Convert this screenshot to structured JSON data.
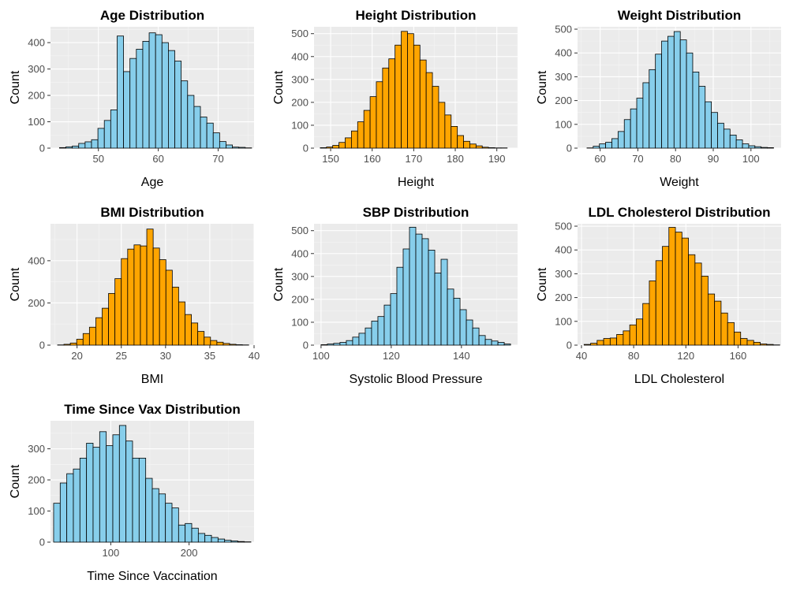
{
  "colors": {
    "blue": "#87CEEB",
    "orange": "#FFA500",
    "panel": "#EBEBEB",
    "grid": "#FFFFFF"
  },
  "chart_data": [
    {
      "type": "bar",
      "title": "Age Distribution",
      "xlabel": "Age",
      "ylabel": "Count",
      "fill": "blue",
      "bins_start": 43.5,
      "bin_width": 1.07,
      "values": [
        2,
        5,
        8,
        18,
        24,
        32,
        75,
        105,
        145,
        425,
        290,
        340,
        375,
        405,
        437,
        430,
        400,
        370,
        330,
        255,
        200,
        158,
        118,
        95,
        58,
        25,
        12,
        4,
        3,
        1
      ],
      "xlim": [
        42,
        76
      ],
      "ylim": [
        0,
        460
      ],
      "xticks": [
        50,
        60,
        70
      ],
      "yticks": [
        0,
        100,
        200,
        300,
        400
      ]
    },
    {
      "type": "bar",
      "title": "Height Distribution",
      "xlabel": "Height",
      "ylabel": "Count",
      "fill": "orange",
      "bins_start": 147.5,
      "bin_width": 1.5,
      "values": [
        2,
        5,
        12,
        25,
        45,
        75,
        115,
        165,
        225,
        290,
        350,
        390,
        450,
        510,
        500,
        450,
        385,
        330,
        270,
        200,
        145,
        95,
        55,
        30,
        18,
        10,
        4,
        2,
        1,
        1
      ],
      "xlim": [
        146,
        195
      ],
      "ylim": [
        0,
        530
      ],
      "xticks": [
        150,
        160,
        170,
        180,
        190
      ],
      "yticks": [
        0,
        100,
        200,
        300,
        400,
        500
      ]
    },
    {
      "type": "bar",
      "title": "Weight Distribution",
      "xlabel": "Weight",
      "ylabel": "Count",
      "fill": "blue",
      "bins_start": 56.5,
      "bin_width": 1.65,
      "values": [
        1,
        8,
        18,
        25,
        40,
        70,
        120,
        165,
        210,
        275,
        330,
        395,
        450,
        470,
        490,
        455,
        400,
        320,
        260,
        195,
        150,
        105,
        80,
        55,
        35,
        18,
        10,
        6,
        3,
        2
      ],
      "xlim": [
        54,
        108
      ],
      "ylim": [
        0,
        510
      ],
      "xticks": [
        60,
        70,
        80,
        90,
        100
      ],
      "yticks": [
        0,
        100,
        200,
        300,
        400,
        500
      ]
    },
    {
      "type": "bar",
      "title": "BMI Distribution",
      "xlabel": "BMI",
      "ylabel": "Count",
      "fill": "orange",
      "bins_start": 17.8,
      "bin_width": 0.72,
      "values": [
        1,
        4,
        10,
        28,
        55,
        85,
        130,
        175,
        245,
        315,
        410,
        455,
        475,
        470,
        550,
        460,
        405,
        355,
        275,
        205,
        145,
        105,
        65,
        38,
        22,
        14,
        8,
        4,
        2,
        1
      ],
      "xlim": [
        17,
        40
      ],
      "ylim": [
        0,
        575
      ],
      "xticks": [
        20,
        25,
        30,
        35,
        40
      ],
      "yticks": [
        0,
        200,
        400
      ]
    },
    {
      "type": "bar",
      "title": "SBP Distribution",
      "xlabel": "Systolic Blood Pressure",
      "ylabel": "Count",
      "fill": "blue",
      "bins_start": 100,
      "bin_width": 1.8,
      "values": [
        2,
        5,
        8,
        12,
        20,
        35,
        52,
        75,
        105,
        125,
        175,
        225,
        340,
        420,
        515,
        485,
        465,
        415,
        315,
        375,
        245,
        205,
        155,
        110,
        75,
        42,
        25,
        18,
        12,
        5
      ],
      "xlim": [
        98,
        156
      ],
      "ylim": [
        0,
        530
      ],
      "xticks": [
        100,
        120,
        140
      ],
      "yticks": [
        0,
        100,
        200,
        300,
        400,
        500
      ]
    },
    {
      "type": "bar",
      "title": "LDL Cholesterol Distribution",
      "xlabel": "LDL Cholesterol",
      "ylabel": "Count",
      "fill": "orange",
      "bins_start": 42,
      "bin_width": 5,
      "values": [
        3,
        8,
        20,
        28,
        30,
        45,
        60,
        85,
        110,
        175,
        270,
        355,
        415,
        495,
        475,
        450,
        380,
        345,
        290,
        215,
        185,
        135,
        95,
        55,
        28,
        20,
        12,
        5,
        3,
        1
      ],
      "xlim": [
        37,
        193
      ],
      "ylim": [
        0,
        510
      ],
      "xticks": [
        40,
        80,
        120,
        160
      ],
      "yticks": [
        0,
        100,
        200,
        300,
        400,
        500
      ]
    },
    {
      "type": "bar",
      "title": "Time Since Vax Distribution",
      "xlabel": "Time Since Vaccination",
      "ylabel": "Count",
      "fill": "blue",
      "bins_start": 27,
      "bin_width": 8.4,
      "values": [
        125,
        190,
        220,
        235,
        270,
        318,
        305,
        355,
        310,
        345,
        375,
        325,
        270,
        270,
        205,
        172,
        155,
        125,
        110,
        55,
        60,
        45,
        28,
        22,
        15,
        10,
        6,
        4,
        2,
        1
      ],
      "xlim": [
        23,
        283
      ],
      "ylim": [
        0,
        390
      ],
      "xticks": [
        100,
        200
      ],
      "yticks": [
        0,
        100,
        200,
        300
      ]
    }
  ]
}
